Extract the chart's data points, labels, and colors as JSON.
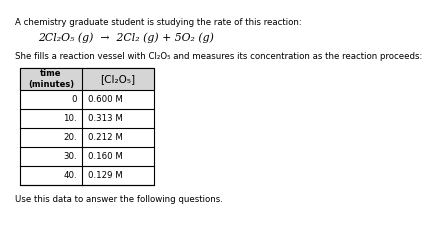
{
  "title_line1": "A chemistry graduate student is studying the rate of this reaction:",
  "reaction_text": "2Cl₂O₅ (g)  →  2Cl₂ (g) + 5O₂ (g)",
  "desc_line": "She fills a reaction vessel with Cl₂O₅ and measures its concentration as the reaction proceeds:",
  "col_header1": "time\n(minutes)",
  "col_header2": "[Cl₂O₅]",
  "time_values": [
    "0",
    "10.",
    "20.",
    "30.",
    "40."
  ],
  "conc_values": [
    "0.600 M",
    "0.313 M",
    "0.212 M",
    "0.160 M",
    "0.129 M"
  ],
  "footer": "Use this data to answer the following questions.",
  "bg_color": "#ffffff",
  "text_color": "#000000",
  "body_fs": 6.2,
  "reaction_fs": 7.8,
  "header_fs": 6.0,
  "conc_col_fs": 7.5
}
